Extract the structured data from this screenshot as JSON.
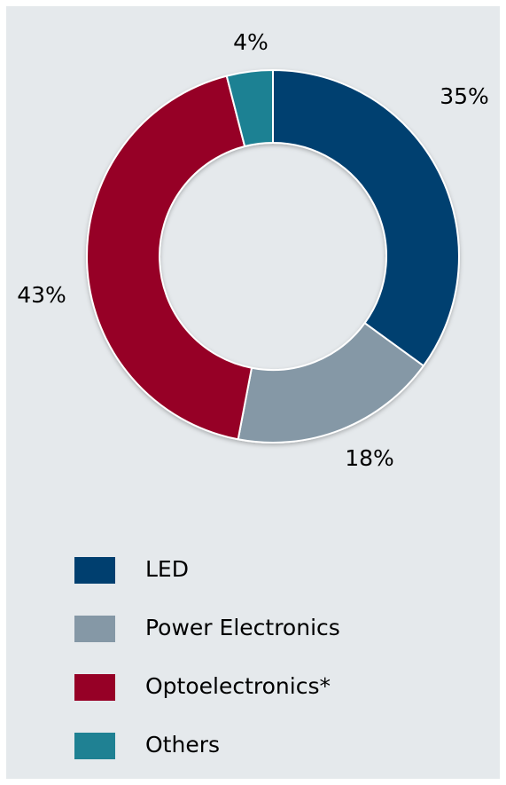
{
  "chart_data": {
    "type": "pie",
    "variant": "donut",
    "series": [
      {
        "name": "LED",
        "value": 35,
        "label": "35%",
        "color": "#003f6f"
      },
      {
        "name": "Power Electronics",
        "value": 18,
        "label": "18%",
        "color": "#8598a6"
      },
      {
        "name": "Optoelectronics*",
        "value": 43,
        "label": "43%",
        "color": "#960026"
      },
      {
        "name": "Others",
        "value": 4,
        "label": "4%",
        "color": "#1f8193"
      }
    ],
    "start_angle_deg": 0,
    "direction": "clockwise",
    "legend_position": "bottom-left"
  },
  "colors": {
    "background": "#e5e9ec",
    "separator": "#ffffff"
  }
}
